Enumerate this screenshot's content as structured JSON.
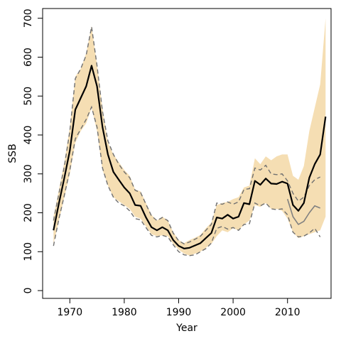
{
  "chart_data": {
    "type": "line",
    "xlabel": "Year",
    "ylabel": "SSB",
    "xlim": [
      1965,
      2018
    ],
    "ylim": [
      -20,
      725
    ],
    "x_ticks": [
      1970,
      1980,
      1990,
      2000,
      2010
    ],
    "y_ticks": [
      0,
      100,
      200,
      300,
      400,
      500,
      600,
      700
    ],
    "grid": false,
    "band": {
      "color": "#f5deb3",
      "x": [
        1967,
        1968,
        1969,
        1970,
        1971,
        1972,
        1973,
        1974,
        1975,
        1976,
        1977,
        1978,
        1979,
        1980,
        1981,
        1982,
        1983,
        1984,
        1985,
        1986,
        1987,
        1988,
        1989,
        1990,
        1991,
        1992,
        1993,
        1994,
        1995,
        1996,
        1997,
        1998,
        1999,
        2000,
        2001,
        2002,
        2003,
        2004,
        2005,
        2006,
        2007,
        2008,
        2009,
        2010,
        2011,
        2012,
        2013,
        2014,
        2015,
        2016,
        2017
      ],
      "upper": [
        190,
        260,
        330,
        420,
        550,
        570,
        610,
        680,
        580,
        470,
        380,
        350,
        330,
        310,
        295,
        260,
        255,
        225,
        195,
        180,
        190,
        180,
        150,
        130,
        122,
        130,
        136,
        143,
        160,
        175,
        220,
        225,
        228,
        235,
        240,
        265,
        270,
        340,
        325,
        345,
        335,
        345,
        350,
        350,
        295,
        285,
        320,
        410,
        470,
        530,
        700
      ],
      "lower": [
        120,
        180,
        240,
        300,
        380,
        410,
        430,
        470,
        410,
        310,
        270,
        240,
        230,
        220,
        210,
        190,
        185,
        165,
        145,
        140,
        142,
        140,
        120,
        105,
        95,
        90,
        95,
        100,
        110,
        120,
        140,
        155,
        150,
        160,
        155,
        170,
        180,
        220,
        215,
        225,
        210,
        210,
        205,
        185,
        150,
        135,
        140,
        145,
        150,
        155,
        190
      ]
    },
    "series": [
      {
        "color": "#000000",
        "x": [
          1967,
          1968,
          1969,
          1970,
          1971,
          1972,
          1973,
          1974,
          1975,
          1976,
          1977,
          1978,
          1979,
          1980,
          1981,
          1982,
          1983,
          1984,
          1985,
          1986,
          1987,
          1988,
          1989,
          1990,
          1991,
          1992,
          1993,
          1994,
          1995,
          1996,
          1997,
          1998,
          1999,
          2000,
          2001,
          2002,
          2003,
          2004,
          2005,
          2006,
          2007,
          2008,
          2009,
          2010,
          2011,
          2012,
          2013,
          2014,
          2015,
          2016,
          2017
        ],
        "values": [
          155,
          225,
          290,
          360,
          465,
          495,
          525,
          578,
          525,
          420,
          350,
          305,
          285,
          265,
          250,
          220,
          218,
          188,
          163,
          155,
          163,
          155,
          130,
          115,
          108,
          110,
          116,
          122,
          135,
          148,
          188,
          185,
          195,
          185,
          190,
          225,
          222,
          282,
          272,
          288,
          275,
          274,
          280,
          275,
          220,
          205,
          225,
          290,
          325,
          350,
          447
        ]
      },
      {
        "color": "#808080",
        "x": [
          2010,
          2011,
          2012,
          2013,
          2014,
          2015,
          2016
        ],
        "values": [
          235,
          190,
          170,
          178,
          200,
          218,
          212
        ]
      }
    ],
    "dashed_lines": [
      {
        "color": "#707070",
        "x": [
          1967,
          1968,
          1969,
          1970,
          1971,
          1972,
          1973,
          1974,
          1975,
          1976,
          1977,
          1978,
          1979,
          1980,
          1981,
          1982,
          1983,
          1984,
          1985,
          1986,
          1987,
          1988,
          1989,
          1990,
          1991,
          1992,
          1993,
          1994,
          1995,
          1996,
          1997,
          1998,
          1999,
          2000,
          2001,
          2002,
          2003,
          2004,
          2005,
          2006,
          2007,
          2008,
          2009,
          2010,
          2011,
          2012,
          2013,
          2014,
          2015,
          2016
        ],
        "values": [
          180,
          250,
          320,
          410,
          545,
          570,
          605,
          678,
          578,
          460,
          385,
          350,
          325,
          305,
          290,
          258,
          252,
          222,
          192,
          180,
          188,
          180,
          148,
          128,
          120,
          125,
          132,
          140,
          155,
          170,
          225,
          222,
          228,
          222,
          228,
          260,
          262,
          315,
          310,
          322,
          300,
          298,
          300,
          282,
          250,
          230,
          240,
          270,
          285,
          292
        ]
      },
      {
        "color": "#707070",
        "x": [
          1967,
          1968,
          1969,
          1970,
          1971,
          1972,
          1973,
          1974,
          1975,
          1976,
          1977,
          1978,
          1979,
          1980,
          1981,
          1982,
          1983,
          1984,
          1985,
          1986,
          1987,
          1988,
          1989,
          1990,
          1991,
          1992,
          1993,
          1994,
          1995,
          1996,
          1997,
          1998,
          1999,
          2000,
          2001,
          2002,
          2003,
          2004,
          2005,
          2006,
          2007,
          2008,
          2009,
          2010,
          2011,
          2012,
          2013,
          2014,
          2015,
          2016
        ],
        "values": [
          115,
          185,
          245,
          310,
          390,
          415,
          440,
          472,
          420,
          315,
          270,
          240,
          225,
          218,
          205,
          185,
          182,
          162,
          142,
          138,
          142,
          138,
          118,
          100,
          92,
          90,
          92,
          100,
          108,
          122,
          160,
          165,
          158,
          162,
          155,
          170,
          172,
          225,
          218,
          225,
          210,
          208,
          210,
          195,
          150,
          138,
          140,
          148,
          160,
          138
        ]
      }
    ]
  }
}
